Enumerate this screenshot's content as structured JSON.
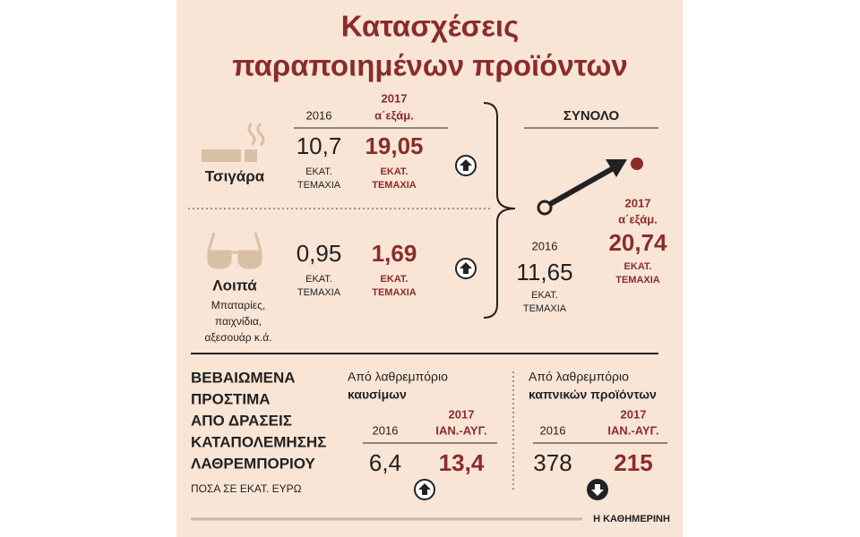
{
  "title": [
    "Κατασχέσεις",
    "παραποιημένων προϊόντων"
  ],
  "seizures": {
    "header": {
      "year_a": "2016",
      "year_b": [
        "2017",
        "α΄εξάμ."
      ]
    },
    "rows": [
      {
        "label": "Τσιγάρα",
        "value_a": "10,7",
        "unit_a": [
          "ΕΚΑΤ.",
          "ΤΕΜΑΧΙΑ"
        ],
        "value_b": "19,05",
        "unit_b": [
          "ΕΚΑΤ.",
          "ΤΕΜΑΧΙΑ"
        ]
      },
      {
        "label": "Λοιπά",
        "note": [
          "Μπαταρίες,",
          "παιχνίδια,",
          "αξεσουάρ κ.ά."
        ],
        "value_a": "0,95",
        "unit_a": [
          "ΕΚΑΤ.",
          "ΤΕΜΑΧΙΑ"
        ],
        "value_b": "1,69",
        "unit_b": [
          "ΕΚΑΤ.",
          "ΤΕΜΑΧΙΑ"
        ]
      }
    ]
  },
  "total": {
    "title": "ΣΥΝΟΛΟ",
    "year_a": "2016",
    "value_a": "11,65",
    "unit_a": [
      "ΕΚΑΤ.",
      "ΤΕΜΑΧΙΑ"
    ],
    "year_b": [
      "2017",
      "α΄εξάμ."
    ],
    "value_b": "20,74",
    "unit_b": [
      "ΕΚΑΤ.",
      "ΤΕΜΑΧΙΑ"
    ]
  },
  "fines": {
    "title": [
      "ΒΕΒΑΙΩΜΕΝΑ",
      "ΠΡΟΣΤΙΜΑ",
      "ΑΠΟ ΔΡΑΣΕΙΣ",
      "ΚΑΤΑΠΟΛΕΜΗΣΗΣ",
      "ΛΑΘΡΕΜΠΟΡΙΟΥ"
    ],
    "note": "ΠΟΣΑ ΣΕ ΕΚΑΤ. ΕΥΡΩ",
    "groups": [
      {
        "label": [
          "Από λαθρεμπόριο",
          "καυσίμων"
        ],
        "year_a": "2016",
        "year_b": [
          "2017",
          "ΙΑΝ.-ΑΥΓ."
        ],
        "value_a": "6,4",
        "value_b": "13,4"
      },
      {
        "label": [
          "Από λαθρεμπόριο",
          "καπνικών προϊόντων"
        ],
        "year_a": "2016",
        "year_b": [
          "2017",
          "ΙΑΝ.-ΑΥΓ."
        ],
        "value_a": "378",
        "value_b": "215"
      }
    ]
  },
  "source": "Η ΚΑΘΗΜΕΡΙΝΗ"
}
